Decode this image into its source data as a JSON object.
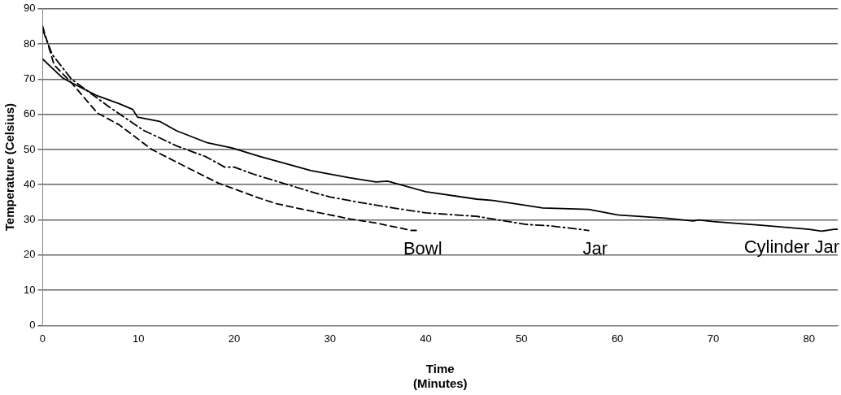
{
  "chart_data": {
    "type": "line",
    "xlabel": "Time (Minutes)",
    "ylabel": "Temperature (Celsius)",
    "xlim": [
      0,
      83
    ],
    "xticks": [
      0,
      10,
      20,
      30,
      40,
      50,
      60,
      70,
      80
    ],
    "ylim": [
      0,
      90
    ],
    "yticks": [
      0,
      10,
      20,
      30,
      40,
      50,
      60,
      70,
      80,
      90
    ],
    "grid": "y",
    "legend": false,
    "marker": "none",
    "series": [
      {
        "name": "Bowl",
        "color": "#000000",
        "line_style": "dashed",
        "x": [
          0,
          1.2,
          3,
          5.7,
          8,
          11.4,
          15,
          18.3,
          22.7,
          24.4,
          28,
          32.2,
          35,
          38.5,
          39
        ],
        "values": [
          85,
          74,
          69,
          60.4,
          57,
          50,
          45,
          40.5,
          36.1,
          34.6,
          32.5,
          30.2,
          29,
          27,
          27
        ]
      },
      {
        "name": "Jar",
        "color": "#000000",
        "line_style": "dotted",
        "x": [
          0,
          1,
          3,
          5,
          7,
          10.5,
          14,
          17,
          19,
          20,
          22,
          24.4,
          28,
          30,
          33,
          36.6,
          40,
          45.3,
          50.5,
          53,
          56.1,
          57
        ],
        "values": [
          84,
          77,
          70,
          66,
          62,
          55.5,
          51,
          48,
          45,
          45,
          43,
          41,
          38,
          36.5,
          35,
          33.4,
          32,
          31,
          28.7,
          28.3,
          27.3,
          27
        ]
      },
      {
        "name": "Cylinder Jar",
        "color": "#000000",
        "line_style": "solid",
        "x": [
          0,
          2.1,
          3,
          5.6,
          8,
          9.4,
          9.9,
          12.2,
          14,
          17.2,
          19.8,
          22.7,
          24.4,
          28,
          32,
          34.8,
          36,
          40,
          45.3,
          47,
          50,
          52.2,
          57,
          60,
          65,
          67.9,
          68.5,
          70,
          75,
          80,
          81.3,
          82.6,
          83
        ],
        "values": [
          75.7,
          70.3,
          69,
          65.4,
          63,
          61.4,
          59.2,
          58,
          55.3,
          51.9,
          50.4,
          48,
          46.7,
          44,
          42,
          40.8,
          41,
          38,
          35.9,
          35.5,
          34.3,
          33.4,
          33,
          31.4,
          30.5,
          29.7,
          30,
          29.5,
          28.5,
          27.3,
          26.8,
          27.3,
          27.3
        ]
      }
    ]
  }
}
